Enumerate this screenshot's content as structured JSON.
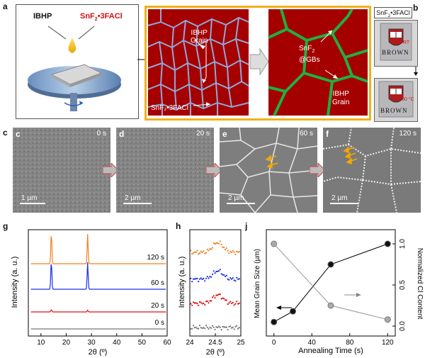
{
  "panels": {
    "a": "a",
    "b": "b",
    "c": "c",
    "d": "d",
    "e": "e",
    "f": "f",
    "g": "g",
    "h": "h",
    "j": "j"
  },
  "panel_a": {
    "ibhp": "IBHP",
    "snf2_pre": "SnF",
    "snf2_sub": "2",
    "snf2_post": "•3FACl",
    "left_grain": "IBHP\nGrain",
    "left_snf": "SnF₂•3FACl",
    "right_snf": "SnF",
    "right_snf_sub": "2",
    "right_gbs": "@GBs",
    "right_grain": "IBHP\nGrain"
  },
  "panel_b": {
    "title_pre": "SnF",
    "title_sub": "2",
    "title_post": "•3FACl",
    "logo_text": "BROWN",
    "rt": "RT",
    "hot": "60 °C"
  },
  "sem": [
    {
      "time": "0 s",
      "scale": "1 µm"
    },
    {
      "time": "20 s",
      "scale": "2 µm"
    },
    {
      "time": "60 s",
      "scale": "2 µm"
    },
    {
      "time": "120 s",
      "scale": "2 µm"
    }
  ],
  "colors": {
    "border_orange": "#f0b21a",
    "grain_red": "#a50000",
    "gb_blue": "#8fa8d8",
    "gb_green": "#1fb040",
    "xrd_orange": "#f08020",
    "xrd_blue": "#1a2ee6",
    "xrd_red": "#e01010",
    "xrd_gray": "#777777",
    "arrow_orange": "#f2a800"
  },
  "chart_data": [
    {
      "type": "line",
      "panel": "g",
      "xlabel": "2θ (º)",
      "ylabel": "Intensity (a. u.)",
      "xlim": [
        5,
        60
      ],
      "xticks": [
        "10",
        "20",
        "30",
        "40",
        "50",
        "60"
      ],
      "series": [
        {
          "name": "120 s",
          "peaks": [
            [
              14.1,
              1.0
            ],
            [
              28.5,
              0.95
            ]
          ]
        },
        {
          "name": "60 s",
          "peaks": [
            [
              14.1,
              1.0
            ],
            [
              28.5,
              0.95
            ]
          ]
        },
        {
          "name": "20 s",
          "peaks": [
            [
              14.1,
              0.08
            ],
            [
              28.5,
              0.06
            ]
          ]
        },
        {
          "name": "0 s",
          "peaks": []
        }
      ]
    },
    {
      "type": "scatter",
      "panel": "h",
      "xlabel": "2θ (º)",
      "ylabel": "Intensity (a. u.)",
      "xlim": [
        24,
        25
      ],
      "xticks": [
        "24",
        "24.5",
        "25"
      ],
      "peak_center": 24.55
    },
    {
      "type": "line",
      "panel": "j",
      "xlabel": "Annealing Time (s)",
      "ylabel": "Mean Grain Size (µm)",
      "y2label": "Normalized Cl Content",
      "xlim": [
        -8,
        128
      ],
      "xticks": [
        "0",
        "40",
        "80",
        "120"
      ],
      "y2ticks": [
        "0.0",
        "0.5",
        "1.0"
      ],
      "series": [
        {
          "name": "Mean Grain Size",
          "x": [
            0,
            20,
            60,
            120
          ],
          "y": [
            0.05,
            0.18,
            0.75,
            1.0
          ]
        },
        {
          "name": "Normalized Cl Content",
          "x": [
            0,
            60,
            120
          ],
          "y": [
            1.0,
            0.25,
            0.08
          ]
        }
      ]
    }
  ]
}
